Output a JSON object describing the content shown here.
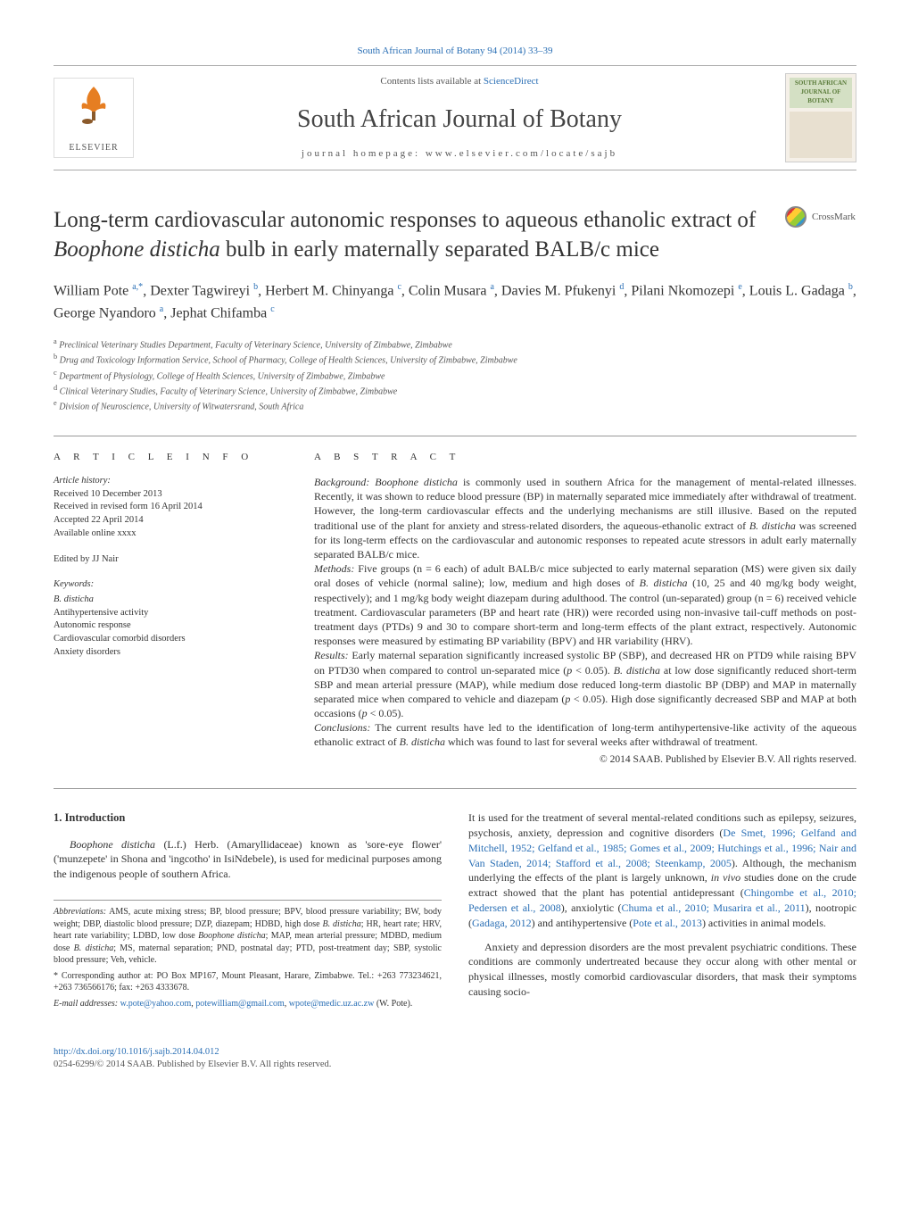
{
  "top_link": {
    "journal": "South African Journal of Botany",
    "vol_pages": "94 (2014) 33–39"
  },
  "header": {
    "contents_prefix": "Contents lists available at",
    "science_direct": "ScienceDirect",
    "journal_name": "South African Journal of Botany",
    "homepage_label": "journal homepage:",
    "homepage_url": "www.elsevier.com/locate/sajb",
    "elsevier": "ELSEVIER",
    "cover_title": "SOUTH AFRICAN JOURNAL OF BOTANY"
  },
  "article": {
    "title_html": "Long-term cardiovascular autonomic responses to aqueous ethanolic extract of <em>Boophone disticha</em> bulb in early maternally separated BALB/c mice",
    "crossmark": "CrossMark"
  },
  "authors_html": "William Pote <sup>a,*</sup>, Dexter Tagwireyi <sup>b</sup>, Herbert M. Chinyanga <sup>c</sup>, Colin Musara <sup>a</sup>, Davies M. Pfukenyi <sup>d</sup>, Pilani Nkomozepi <sup>e</sup>, Louis L. Gadaga <sup>b</sup>, George Nyandoro <sup>a</sup>, Jephat Chifamba <sup>c</sup>",
  "affiliations": [
    {
      "sup": "a",
      "text": "Preclinical Veterinary Studies Department, Faculty of Veterinary Science, University of Zimbabwe, Zimbabwe"
    },
    {
      "sup": "b",
      "text": "Drug and Toxicology Information Service, School of Pharmacy, College of Health Sciences, University of Zimbabwe, Zimbabwe"
    },
    {
      "sup": "c",
      "text": "Department of Physiology, College of Health Sciences, University of Zimbabwe, Zimbabwe"
    },
    {
      "sup": "d",
      "text": "Clinical Veterinary Studies, Faculty of Veterinary Science, University of Zimbabwe, Zimbabwe"
    },
    {
      "sup": "e",
      "text": "Division of Neuroscience, University of Witwatersrand, South Africa"
    }
  ],
  "article_info": {
    "label": "A R T I C L E   I N F O",
    "history_label": "Article history:",
    "received": "Received 10 December 2013",
    "revised": "Received in revised form 16 April 2014",
    "accepted": "Accepted 22 April 2014",
    "online": "Available online xxxx",
    "edited": "Edited by JJ Nair",
    "keywords_label": "Keywords:",
    "keywords": [
      "B. disticha",
      "Antihypertensive activity",
      "Autonomic response",
      "Cardiovascular comorbid disorders",
      "Anxiety disorders"
    ]
  },
  "abstract": {
    "label": "A B S T R A C T",
    "background_html": "<span class='para-label'>Background:</span> <em>Boophone disticha</em> is commonly used in southern Africa for the management of mental-related illnesses. Recently, it was shown to reduce blood pressure (BP) in maternally separated mice immediately after withdrawal of treatment. However, the long-term cardiovascular effects and the underlying mechanisms are still illusive. Based on the reputed traditional use of the plant for anxiety and stress-related disorders, the aqueous-ethanolic extract of <em>B. disticha</em> was screened for its long-term effects on the cardiovascular and autonomic responses to repeated acute stressors in adult early maternally separated BALB/c mice.",
    "methods_html": "<span class='para-label'>Methods:</span> Five groups (n = 6 each) of adult BALB/c mice subjected to early maternal separation (MS) were given six daily oral doses of vehicle (normal saline); low, medium and high doses of <em>B. disticha</em> (10, 25 and 40 mg/kg body weight, respectively); and 1 mg/kg body weight diazepam during adulthood. The control (un-separated) group (n = 6) received vehicle treatment. Cardiovascular parameters (BP and heart rate (HR)) were recorded using non-invasive tail-cuff methods on post-treatment days (PTDs) 9 and 30 to compare short-term and long-term effects of the plant extract, respectively. Autonomic responses were measured by estimating BP variability (BPV) and HR variability (HRV).",
    "results_html": "<span class='para-label'>Results:</span> Early maternal separation significantly increased systolic BP (SBP), and decreased HR on PTD9 while raising BPV on PTD30 when compared to control un-separated mice (<em>p</em> &lt; 0.05). <em>B. disticha</em> at low dose significantly reduced short-term SBP and mean arterial pressure (MAP), while medium dose reduced long-term diastolic BP (DBP) and MAP in maternally separated mice when compared to vehicle and diazepam (<em>p</em> &lt; 0.05). High dose significantly decreased SBP and MAP at both occasions (<em>p</em> &lt; 0.05).",
    "conclusions_html": "<span class='para-label'>Conclusions:</span> The current results have led to the identification of long-term antihypertensive-like activity of the aqueous ethanolic extract of <em>B. disticha</em> which was found to last for several weeks after withdrawal of treatment.",
    "copyright": "© 2014 SAAB. Published by Elsevier B.V. All rights reserved."
  },
  "intro": {
    "heading": "1. Introduction",
    "para1_html": "<em>Boophone disticha</em> (L.f.) Herb. (Amaryllidaceae) known as 'sore-eye flower' ('munzepete' in Shona and 'ingcotho' in IsiNdebele), is used for medicinal purposes among the indigenous people of southern Africa.",
    "col2_para1_html": "It is used for the treatment of several mental-related conditions such as epilepsy, seizures, psychosis, anxiety, depression and cognitive disorders (<span class='link'>De Smet, 1996; Gelfand and Mitchell, 1952; Gelfand et al., 1985; Gomes et al., 2009; Hutchings et al., 1996; Nair and Van Staden, 2014; Stafford et al., 2008; Steenkamp, 2005</span>). Although, the mechanism underlying the effects of the plant is largely unknown, <em>in vivo</em> studies done on the crude extract showed that the plant has potential antidepressant (<span class='link'>Chingombe et al., 2010; Pedersen et al., 2008</span>), anxiolytic (<span class='link'>Chuma et al., 2010; Musarira et al., 2011</span>), nootropic (<span class='link'>Gadaga, 2012</span>) and antihypertensive (<span class='link'>Pote et al., 2013</span>) activities in animal models.",
    "col2_para2_html": "Anxiety and depression disorders are the most prevalent psychiatric conditions. These conditions are commonly undertreated because they occur along with other mental or physical illnesses, mostly comorbid cardiovascular disorders, that mask their symptoms causing socio-"
  },
  "abbreviations_html": "<em>Abbreviations:</em> AMS, acute mixing stress; BP, blood pressure; BPV, blood pressure variability; BW, body weight; DBP, diastolic blood pressure; DZP, diazepam; HDBD, high dose <em>B. disticha</em>; HR, heart rate; HRV, heart rate variability; LDBD, low dose <em>Boophone disticha</em>; MAP, mean arterial pressure; MDBD, medium dose <em>B. disticha</em>; MS, maternal separation; PND, postnatal day; PTD, post-treatment day; SBP, systolic blood pressure; Veh, vehicle.",
  "corresponding": {
    "text": "* Corresponding author at: PO Box MP167, Mount Pleasant, Harare, Zimbabwe. Tel.: +263 773234621, +263 736566176; fax: +263 4333678.",
    "emails_label": "E-mail addresses:",
    "emails": [
      "w.pote@yahoo.com",
      "potewilliam@gmail.com",
      "wpote@medic.uz.ac.zw"
    ],
    "author_paren": "(W. Pote)."
  },
  "footer": {
    "doi": "http://dx.doi.org/10.1016/j.sajb.2014.04.012",
    "issn_line": "0254-6299/© 2014 SAAB. Published by Elsevier B.V. All rights reserved."
  }
}
